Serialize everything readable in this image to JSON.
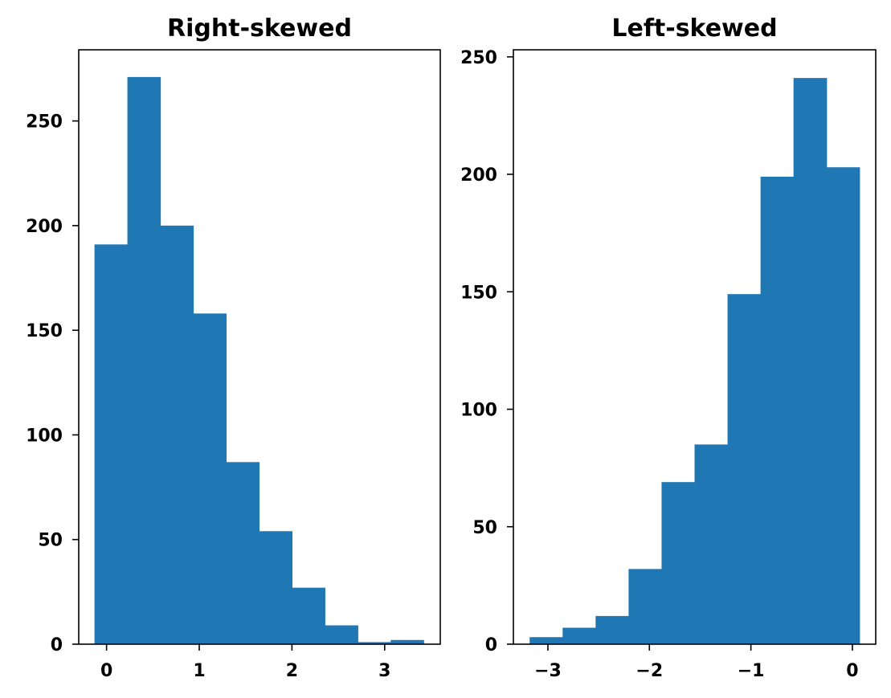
{
  "chart_data": [
    {
      "type": "histogram",
      "title": "Right-skewed",
      "bin_edges": [
        -0.13,
        0.225,
        0.58,
        0.935,
        1.29,
        1.645,
        2.0,
        2.355,
        2.71,
        3.065,
        3.42
      ],
      "values": [
        191,
        271,
        200,
        158,
        87,
        54,
        27,
        9,
        1,
        2
      ],
      "xlim": [
        -0.3,
        3.6
      ],
      "ylim": [
        0,
        284
      ],
      "xticks": [
        0,
        1,
        2,
        3
      ],
      "xtick_labels": [
        "0",
        "1",
        "2",
        "3"
      ],
      "yticks": [
        0,
        50,
        100,
        150,
        200,
        250
      ],
      "ytick_labels": [
        "0",
        "50",
        "100",
        "150",
        "200",
        "250"
      ],
      "color": "#1f77b4",
      "grid": false
    },
    {
      "type": "histogram",
      "title": "Left-skewed",
      "bin_edges": [
        -3.18,
        -2.855,
        -2.53,
        -2.205,
        -1.88,
        -1.555,
        -1.23,
        -0.905,
        -0.58,
        -0.255,
        0.07
      ],
      "values": [
        3,
        7,
        12,
        32,
        69,
        85,
        149,
        199,
        241,
        203
      ],
      "xlim": [
        -3.34,
        0.23
      ],
      "ylim": [
        0,
        253
      ],
      "xticks": [
        -3,
        -2,
        -1,
        0
      ],
      "xtick_labels": [
        "−3",
        "−2",
        "−1",
        "0"
      ],
      "yticks": [
        0,
        50,
        100,
        150,
        200,
        250
      ],
      "ytick_labels": [
        "0",
        "50",
        "100",
        "150",
        "200",
        "250"
      ],
      "color": "#1f77b4",
      "grid": false
    }
  ]
}
